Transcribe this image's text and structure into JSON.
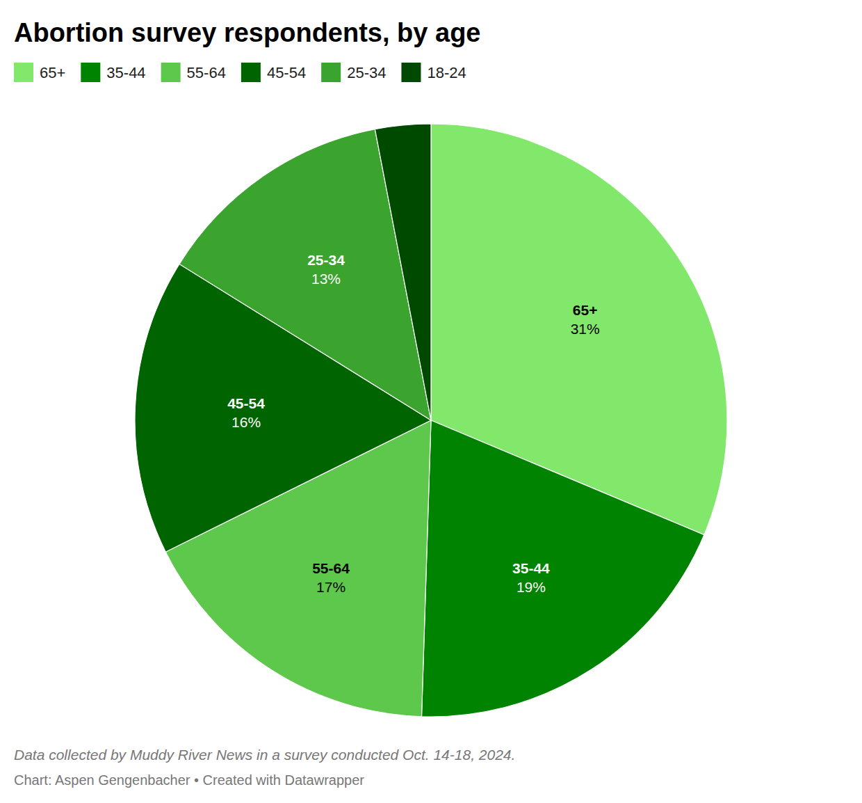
{
  "chart_data": {
    "type": "pie",
    "title": "Abortion survey respondents, by age",
    "categories": [
      "65+",
      "35-44",
      "55-64",
      "45-54",
      "25-34",
      "18-24"
    ],
    "values": [
      31,
      19,
      17,
      16,
      13,
      3
    ],
    "value_labels": [
      "31%",
      "19%",
      "17%",
      "16%",
      "13%",
      null
    ],
    "colors": [
      "#82e86c",
      "#008300",
      "#5ec84c",
      "#006400",
      "#3aa42e",
      "#004a00"
    ],
    "data_labels": true,
    "legend": "top-left",
    "annotations": [
      "Data collected by Muddy River News in a survey conducted Oct. 14-18, 2024.",
      "Chart: Aspen Gengenbacher • Created with Datawrapper"
    ]
  }
}
